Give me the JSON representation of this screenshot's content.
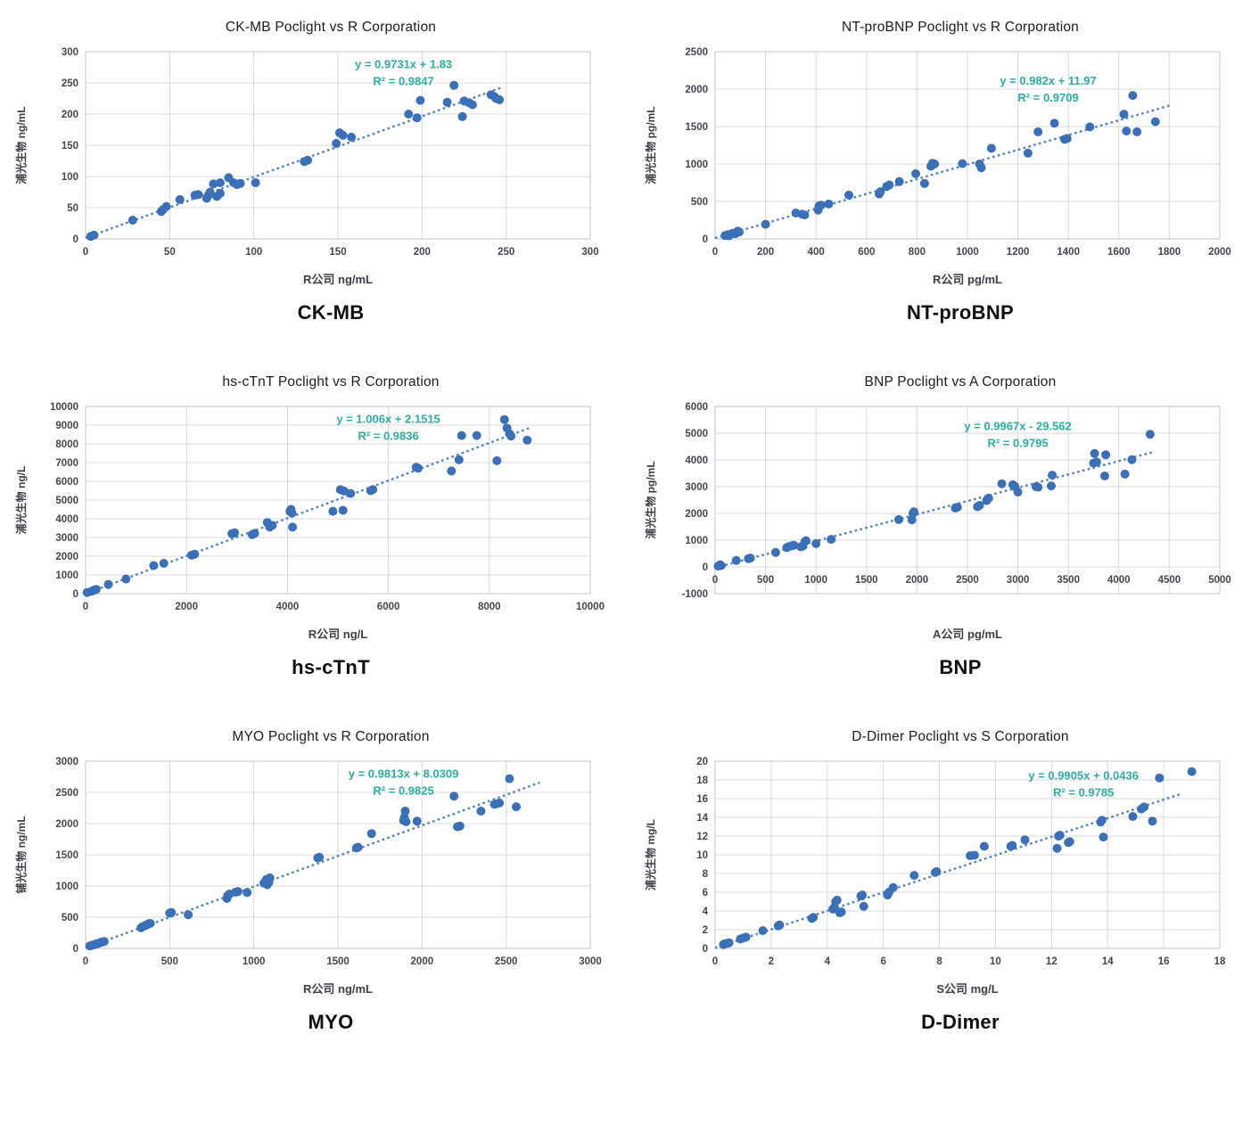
{
  "colors": {
    "point": "#3b6fb8",
    "trend": "#4f7fc7",
    "equation": "#2bafa0",
    "grid": "#d9d9d9",
    "plot_border": "#c6c6c6",
    "tick_label": "#44464f",
    "axis_label": "#3c3e45"
  },
  "chart_data": [
    {
      "type": "scatter",
      "title": "CK-MB Poclight vs R Corporation",
      "caption": "CK-MB",
      "xlabel": "R公司 ng/mL",
      "ylabel": "浦光生物 ng/mL",
      "equation": "y = 0.9731x + 1.83",
      "r_squared": "R² = 0.9847",
      "xlim": [
        0,
        300
      ],
      "ylim": [
        0,
        300
      ],
      "xticks": [
        0,
        50,
        100,
        150,
        200,
        250,
        300
      ],
      "yticks": [
        0,
        50,
        100,
        150,
        200,
        250,
        300
      ],
      "x_axis_cross": 0,
      "eq_pos": [
        0.63,
        0.03
      ],
      "trend": {
        "slope": 0.9731,
        "intercept": 1.83,
        "x_start": 0,
        "x_end": 247
      },
      "points": [
        [
          3,
          4
        ],
        [
          5,
          6
        ],
        [
          28,
          30
        ],
        [
          45,
          44
        ],
        [
          46,
          47
        ],
        [
          48,
          52
        ],
        [
          56,
          63
        ],
        [
          65,
          70
        ],
        [
          67,
          71
        ],
        [
          72,
          65
        ],
        [
          73,
          70
        ],
        [
          74,
          75
        ],
        [
          76,
          88
        ],
        [
          78,
          68
        ],
        [
          80,
          73
        ],
        [
          80,
          90
        ],
        [
          85,
          98
        ],
        [
          88,
          90
        ],
        [
          90,
          87
        ],
        [
          92,
          89
        ],
        [
          101,
          90
        ],
        [
          130,
          124
        ],
        [
          132,
          126
        ],
        [
          149,
          153
        ],
        [
          151,
          170
        ],
        [
          153,
          166
        ],
        [
          158,
          163
        ],
        [
          192,
          200
        ],
        [
          197,
          194
        ],
        [
          199,
          222
        ],
        [
          215,
          219
        ],
        [
          219,
          246
        ],
        [
          224,
          196
        ],
        [
          225,
          221
        ],
        [
          228,
          218
        ],
        [
          230,
          215
        ],
        [
          241,
          231
        ],
        [
          243,
          228
        ],
        [
          244,
          225
        ],
        [
          246,
          223
        ]
      ]
    },
    {
      "type": "scatter",
      "title": "NT-proBNP Poclight vs R Corporation",
      "caption": "NT-proBNP",
      "xlabel": "R公司 pg/mL",
      "ylabel": "浦光生物 pg/mL",
      "equation": "y = 0.982x + 11.97",
      "r_squared": "R² = 0.9709",
      "xlim": [
        0,
        2000
      ],
      "ylim": [
        0,
        2500
      ],
      "xticks": [
        0,
        200,
        400,
        600,
        800,
        1000,
        1200,
        1400,
        1600,
        1800,
        2000
      ],
      "yticks": [
        0,
        500,
        1000,
        1500,
        2000,
        2500
      ],
      "x_axis_cross": 0,
      "eq_pos": [
        0.66,
        0.12
      ],
      "trend": {
        "slope": 0.982,
        "intercept": 11.97,
        "x_start": 0,
        "x_end": 1800
      },
      "points": [
        [
          40,
          45
        ],
        [
          50,
          55
        ],
        [
          55,
          40
        ],
        [
          65,
          65
        ],
        [
          70,
          75
        ],
        [
          80,
          70
        ],
        [
          85,
          85
        ],
        [
          90,
          105
        ],
        [
          95,
          90
        ],
        [
          200,
          195
        ],
        [
          320,
          345
        ],
        [
          345,
          330
        ],
        [
          355,
          320
        ],
        [
          408,
          385
        ],
        [
          412,
          440
        ],
        [
          420,
          450
        ],
        [
          450,
          465
        ],
        [
          530,
          585
        ],
        [
          650,
          600
        ],
        [
          655,
          630
        ],
        [
          680,
          700
        ],
        [
          690,
          720
        ],
        [
          730,
          765
        ],
        [
          795,
          870
        ],
        [
          830,
          740
        ],
        [
          855,
          970
        ],
        [
          862,
          1010
        ],
        [
          870,
          1000
        ],
        [
          980,
          1005
        ],
        [
          1048,
          1000
        ],
        [
          1055,
          950
        ],
        [
          1095,
          1210
        ],
        [
          1240,
          1145
        ],
        [
          1280,
          1430
        ],
        [
          1345,
          1545
        ],
        [
          1385,
          1330
        ],
        [
          1395,
          1340
        ],
        [
          1485,
          1495
        ],
        [
          1620,
          1665
        ],
        [
          1630,
          1440
        ],
        [
          1655,
          1915
        ],
        [
          1672,
          1430
        ],
        [
          1745,
          1565
        ]
      ]
    },
    {
      "type": "scatter",
      "title": "hs-cTnT Poclight vs R Corporation",
      "caption": "hs-cTnT",
      "xlabel": "R公司 ng/L",
      "ylabel": "浦光生物 ng/L",
      "equation": "y = 1.006x + 2.1515",
      "r_squared": "R² = 0.9836",
      "xlim": [
        0,
        10000
      ],
      "ylim": [
        0,
        10000
      ],
      "xticks": [
        0,
        2000,
        4000,
        6000,
        8000,
        10000
      ],
      "yticks": [
        0,
        1000,
        2000,
        3000,
        4000,
        5000,
        6000,
        7000,
        8000,
        9000,
        10000
      ],
      "x_axis_cross": 0,
      "eq_pos": [
        0.6,
        0.03
      ],
      "trend": {
        "slope": 1.006,
        "intercept": 2.1515,
        "x_start": 0,
        "x_end": 8800
      },
      "points": [
        [
          30,
          60
        ],
        [
          120,
          130
        ],
        [
          180,
          200
        ],
        [
          210,
          230
        ],
        [
          450,
          490
        ],
        [
          800,
          780
        ],
        [
          1350,
          1500
        ],
        [
          1550,
          1620
        ],
        [
          2100,
          2050
        ],
        [
          2160,
          2110
        ],
        [
          2900,
          3200
        ],
        [
          2950,
          3250
        ],
        [
          3300,
          3150
        ],
        [
          3350,
          3220
        ],
        [
          3600,
          3800
        ],
        [
          3630,
          3700
        ],
        [
          3650,
          3550
        ],
        [
          3700,
          3650
        ],
        [
          4050,
          4400
        ],
        [
          4070,
          4500
        ],
        [
          4090,
          4300
        ],
        [
          4100,
          3550
        ],
        [
          4900,
          4400
        ],
        [
          5050,
          5550
        ],
        [
          5100,
          4450
        ],
        [
          5120,
          5480
        ],
        [
          5250,
          5350
        ],
        [
          5650,
          5500
        ],
        [
          5690,
          5560
        ],
        [
          6550,
          6750
        ],
        [
          6590,
          6700
        ],
        [
          7250,
          6550
        ],
        [
          7400,
          7150
        ],
        [
          7450,
          8450
        ],
        [
          7750,
          8450
        ],
        [
          8150,
          7100
        ],
        [
          8300,
          9300
        ],
        [
          8350,
          8850
        ],
        [
          8400,
          8550
        ],
        [
          8430,
          8420
        ],
        [
          8750,
          8200
        ]
      ]
    },
    {
      "type": "scatter",
      "title": "BNP Poclight vs A Corporation",
      "caption": "BNP",
      "xlabel": "A公司 pg/mL",
      "ylabel": "浦光生物 pg/mL",
      "equation": "y = 0.9967x - 29.562",
      "r_squared": "R² = 0.9795",
      "xlim": [
        0,
        5000
      ],
      "ylim": [
        -1000,
        6000
      ],
      "xticks": [
        0,
        500,
        1000,
        1500,
        2000,
        2500,
        3000,
        3500,
        4000,
        4500,
        5000
      ],
      "yticks": [
        -1000,
        0,
        1000,
        2000,
        3000,
        4000,
        5000,
        6000
      ],
      "x_axis_cross": 0,
      "eq_pos": [
        0.6,
        0.07
      ],
      "trend": {
        "slope": 0.9967,
        "intercept": -29.562,
        "x_start": 0,
        "x_end": 4350
      },
      "points": [
        [
          30,
          30
        ],
        [
          50,
          80
        ],
        [
          60,
          50
        ],
        [
          210,
          240
        ],
        [
          330,
          310
        ],
        [
          350,
          330
        ],
        [
          600,
          540
        ],
        [
          710,
          720
        ],
        [
          730,
          760
        ],
        [
          760,
          790
        ],
        [
          780,
          810
        ],
        [
          850,
          750
        ],
        [
          870,
          780
        ],
        [
          890,
          950
        ],
        [
          900,
          980
        ],
        [
          1000,
          870
        ],
        [
          1150,
          1030
        ],
        [
          1820,
          1770
        ],
        [
          1950,
          1760
        ],
        [
          1960,
          2000
        ],
        [
          1970,
          2060
        ],
        [
          2380,
          2200
        ],
        [
          2400,
          2230
        ],
        [
          2600,
          2250
        ],
        [
          2620,
          2300
        ],
        [
          2690,
          2480
        ],
        [
          2710,
          2570
        ],
        [
          2840,
          3110
        ],
        [
          2950,
          3070
        ],
        [
          2970,
          3010
        ],
        [
          3000,
          2800
        ],
        [
          3180,
          3000
        ],
        [
          3200,
          2980
        ],
        [
          3330,
          3030
        ],
        [
          3340,
          3430
        ],
        [
          3750,
          3880
        ],
        [
          3760,
          4240
        ],
        [
          3780,
          3920
        ],
        [
          3860,
          3400
        ],
        [
          3870,
          4190
        ],
        [
          4060,
          3470
        ],
        [
          4130,
          4010
        ],
        [
          4310,
          4960
        ]
      ]
    },
    {
      "type": "scatter",
      "title": "MYO Poclight vs R Corporation",
      "caption": "MYO",
      "xlabel": "R公司 ng/mL",
      "ylabel": "铺光生物 ng/mL",
      "equation": "y = 0.9813x + 8.0309",
      "r_squared": "R² = 0.9825",
      "xlim": [
        0,
        3000
      ],
      "ylim": [
        0,
        3000
      ],
      "xticks": [
        0,
        500,
        1000,
        1500,
        2000,
        2500,
        3000
      ],
      "yticks": [
        0,
        500,
        1000,
        1500,
        2000,
        2500,
        3000
      ],
      "x_axis_cross": 0,
      "eq_pos": [
        0.63,
        0.03
      ],
      "trend": {
        "slope": 0.9813,
        "intercept": 8.0309,
        "x_start": 0,
        "x_end": 2700
      },
      "points": [
        [
          25,
          40
        ],
        [
          35,
          50
        ],
        [
          45,
          55
        ],
        [
          55,
          65
        ],
        [
          60,
          70
        ],
        [
          70,
          75
        ],
        [
          80,
          85
        ],
        [
          90,
          95
        ],
        [
          100,
          105
        ],
        [
          110,
          112
        ],
        [
          330,
          330
        ],
        [
          340,
          350
        ],
        [
          355,
          365
        ],
        [
          365,
          380
        ],
        [
          375,
          395
        ],
        [
          385,
          400
        ],
        [
          500,
          565
        ],
        [
          510,
          575
        ],
        [
          610,
          540
        ],
        [
          840,
          800
        ],
        [
          845,
          845
        ],
        [
          855,
          870
        ],
        [
          890,
          900
        ],
        [
          905,
          910
        ],
        [
          960,
          895
        ],
        [
          1060,
          1045
        ],
        [
          1070,
          1075
        ],
        [
          1075,
          1105
        ],
        [
          1080,
          1020
        ],
        [
          1090,
          1060
        ],
        [
          1095,
          1130
        ],
        [
          1380,
          1450
        ],
        [
          1390,
          1460
        ],
        [
          1610,
          1610
        ],
        [
          1620,
          1620
        ],
        [
          1700,
          1840
        ],
        [
          1890,
          2050
        ],
        [
          1895,
          2100
        ],
        [
          1900,
          2200
        ],
        [
          1905,
          2030
        ],
        [
          1970,
          2040
        ],
        [
          2190,
          2440
        ],
        [
          2210,
          1950
        ],
        [
          2225,
          1960
        ],
        [
          2350,
          2200
        ],
        [
          2430,
          2310
        ],
        [
          2445,
          2320
        ],
        [
          2460,
          2330
        ],
        [
          2520,
          2720
        ],
        [
          2560,
          2270
        ]
      ]
    },
    {
      "type": "scatter",
      "title": "D-Dimer Poclight vs S Corporation",
      "caption": "D-Dimer",
      "xlabel": "S公司 mg/L",
      "ylabel": "浦光生物 mg/L",
      "equation": "y = 0.9905x + 0.0436",
      "r_squared": "R² = 0.9785",
      "xlim": [
        0,
        18
      ],
      "ylim": [
        0,
        20
      ],
      "xticks": [
        0,
        2,
        4,
        6,
        8,
        10,
        12,
        14,
        16,
        18
      ],
      "yticks": [
        0,
        2,
        4,
        6,
        8,
        10,
        12,
        14,
        16,
        18,
        20
      ],
      "x_axis_cross": 0,
      "eq_pos": [
        0.73,
        0.04
      ],
      "trend": {
        "slope": 0.9905,
        "intercept": 0.0436,
        "x_start": 0,
        "x_end": 16.6
      },
      "points": [
        [
          0.3,
          0.4
        ],
        [
          0.35,
          0.5
        ],
        [
          0.45,
          0.55
        ],
        [
          0.5,
          0.6
        ],
        [
          0.9,
          1.0
        ],
        [
          1.0,
          1.1
        ],
        [
          1.1,
          1.2
        ],
        [
          1.7,
          1.9
        ],
        [
          2.25,
          2.4
        ],
        [
          2.3,
          2.5
        ],
        [
          3.45,
          3.2
        ],
        [
          3.5,
          3.3
        ],
        [
          4.2,
          4.2
        ],
        [
          4.25,
          4.35
        ],
        [
          4.3,
          5.0
        ],
        [
          4.35,
          5.15
        ],
        [
          4.45,
          3.8
        ],
        [
          4.5,
          3.9
        ],
        [
          5.2,
          5.6
        ],
        [
          5.25,
          5.7
        ],
        [
          5.3,
          4.5
        ],
        [
          6.15,
          5.7
        ],
        [
          6.2,
          6.0
        ],
        [
          6.35,
          6.5
        ],
        [
          7.1,
          7.8
        ],
        [
          7.85,
          8.1
        ],
        [
          7.9,
          8.2
        ],
        [
          9.1,
          9.9
        ],
        [
          9.25,
          9.95
        ],
        [
          9.6,
          10.9
        ],
        [
          10.55,
          10.9
        ],
        [
          10.6,
          11.0
        ],
        [
          11.05,
          11.6
        ],
        [
          12.2,
          10.7
        ],
        [
          12.25,
          12.0
        ],
        [
          12.3,
          12.1
        ],
        [
          12.6,
          11.3
        ],
        [
          12.65,
          11.4
        ],
        [
          13.75,
          13.5
        ],
        [
          13.8,
          13.7
        ],
        [
          13.85,
          11.9
        ],
        [
          14.9,
          14.1
        ],
        [
          15.2,
          14.9
        ],
        [
          15.3,
          15.1
        ],
        [
          15.6,
          13.6
        ],
        [
          15.85,
          18.2
        ],
        [
          17.0,
          18.9
        ]
      ]
    }
  ]
}
